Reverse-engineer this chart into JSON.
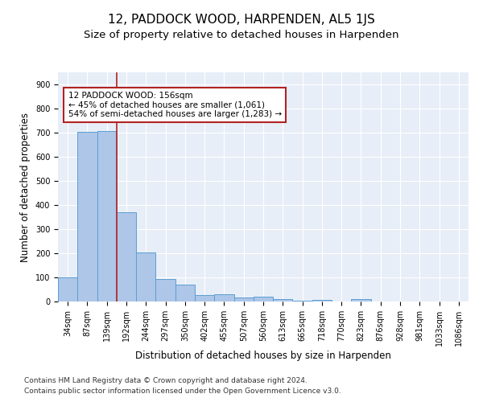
{
  "title": "12, PADDOCK WOOD, HARPENDEN, AL5 1JS",
  "subtitle": "Size of property relative to detached houses in Harpenden",
  "xlabel": "Distribution of detached houses by size in Harpenden",
  "ylabel": "Number of detached properties",
  "footnote1": "Contains HM Land Registry data © Crown copyright and database right 2024.",
  "footnote2": "Contains public sector information licensed under the Open Government Licence v3.0.",
  "bar_labels": [
    "34sqm",
    "87sqm",
    "139sqm",
    "192sqm",
    "244sqm",
    "297sqm",
    "350sqm",
    "402sqm",
    "455sqm",
    "507sqm",
    "560sqm",
    "613sqm",
    "665sqm",
    "718sqm",
    "770sqm",
    "823sqm",
    "876sqm",
    "928sqm",
    "981sqm",
    "1033sqm",
    "1086sqm"
  ],
  "bar_values": [
    100,
    705,
    707,
    370,
    205,
    95,
    70,
    28,
    30,
    18,
    20,
    10,
    5,
    7,
    0,
    10,
    0,
    0,
    0,
    0,
    0
  ],
  "bar_color": "#aec6e8",
  "bar_edge_color": "#5a9fd4",
  "property_line_x": 2.5,
  "property_line_color": "#b22222",
  "annotation_text": "12 PADDOCK WOOD: 156sqm\n← 45% of detached houses are smaller (1,061)\n54% of semi-detached houses are larger (1,283) →",
  "annotation_box_color": "#ffffff",
  "annotation_box_edge": "#b22222",
  "ylim": [
    0,
    950
  ],
  "background_color": "#e8eef7",
  "grid_color": "#ffffff",
  "title_fontsize": 11,
  "subtitle_fontsize": 9.5,
  "axis_label_fontsize": 8.5,
  "tick_fontsize": 7,
  "annotation_fontsize": 7.5,
  "footnote_fontsize": 6.5
}
